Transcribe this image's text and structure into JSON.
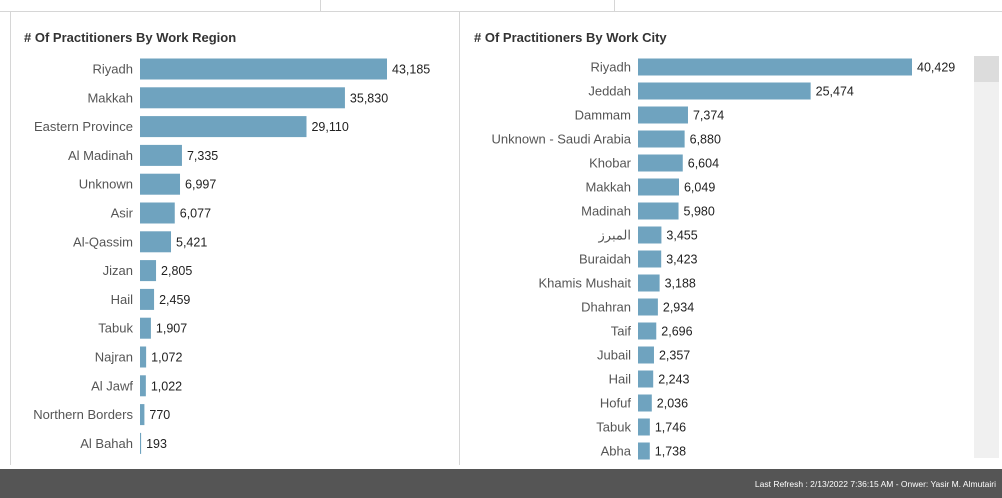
{
  "colors": {
    "bar": "#6fa3bf",
    "text": "#555555",
    "value": "#222222",
    "footer_bg": "#555555"
  },
  "footer": {
    "text": "Last Refresh : 2/13/2022 7:36:15 AM - Onwer: Yasir M. Almutairi"
  },
  "chart_data": [
    {
      "type": "bar",
      "orientation": "horizontal",
      "title": "# Of Practitioners By Work Region",
      "categories": [
        "Riyadh",
        "Makkah",
        "Eastern Province",
        "Al Madinah",
        "Unknown",
        "Asir",
        "Al-Qassim",
        "Jizan",
        "Hail",
        "Tabuk",
        "Najran",
        "Al Jawf",
        "Northern Borders",
        "Al Bahah"
      ],
      "values": [
        43185,
        35830,
        29110,
        7335,
        6997,
        6077,
        5421,
        2805,
        2459,
        1907,
        1072,
        1022,
        770,
        193
      ],
      "labels": [
        "43,185",
        "35,830",
        "29,110",
        "7,335",
        "6,997",
        "6,077",
        "5,421",
        "2,805",
        "2,459",
        "1,907",
        "1,072",
        "1,022",
        "770",
        "193"
      ],
      "xlim": [
        0,
        43185
      ]
    },
    {
      "type": "bar",
      "orientation": "horizontal",
      "title": "# Of Practitioners By Work City",
      "categories": [
        "Riyadh",
        "Jeddah",
        "Dammam",
        "Unknown - Saudi Arabia",
        "Khobar",
        "Makkah",
        "Madinah",
        "المبرز",
        "Buraidah",
        "Khamis Mushait",
        "Dhahran",
        "Taif",
        "Jubail",
        "Hail",
        "Hofuf",
        "Tabuk",
        "Abha"
      ],
      "values": [
        40429,
        25474,
        7374,
        6880,
        6604,
        6049,
        5980,
        3455,
        3423,
        3188,
        2934,
        2696,
        2357,
        2243,
        2036,
        1746,
        1738
      ],
      "labels": [
        "40,429",
        "25,474",
        "7,374",
        "6,880",
        "6,604",
        "6,049",
        "5,980",
        "3,455",
        "3,423",
        "3,188",
        "2,934",
        "2,696",
        "2,357",
        "2,243",
        "2,036",
        "1,746",
        "1,738"
      ],
      "xlim": [
        0,
        40429
      ]
    }
  ]
}
